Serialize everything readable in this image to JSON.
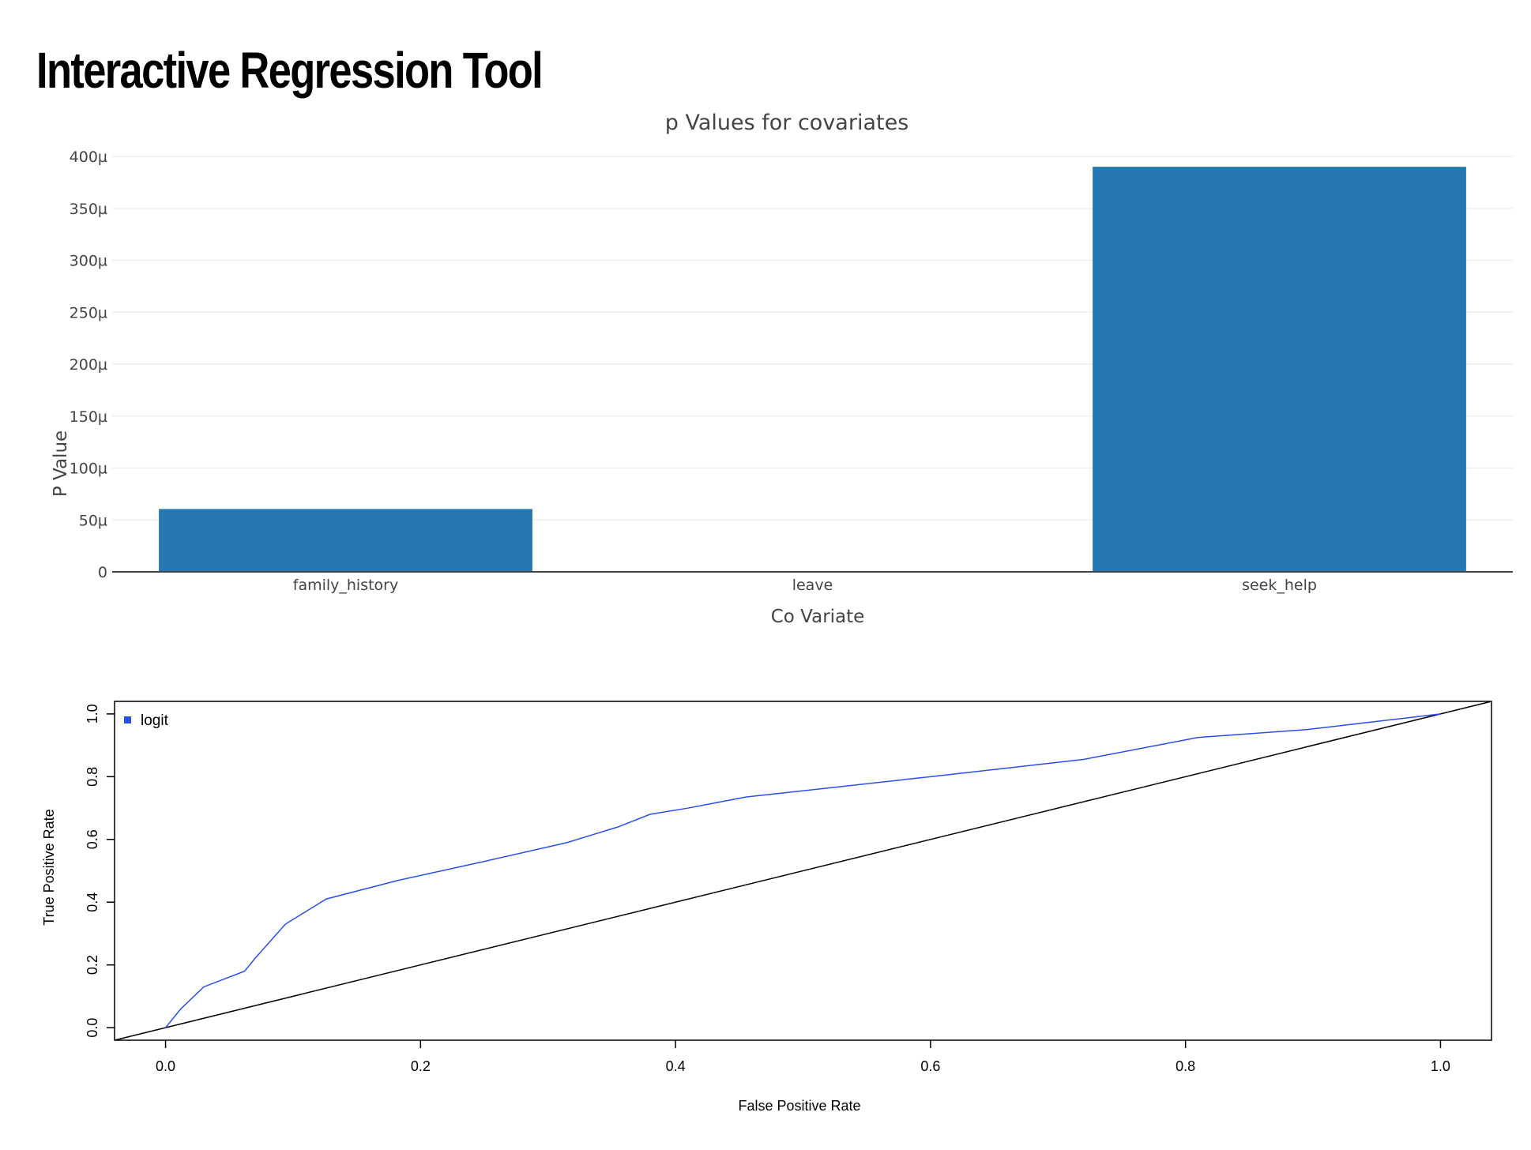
{
  "app": {
    "title": "Interactive Regression Tool"
  },
  "chart_data": [
    {
      "type": "bar",
      "title": "p Values for covariates",
      "xlabel": "Co Variate",
      "ylabel": "P Value",
      "categories": [
        "family_history",
        "leave",
        "seek_help"
      ],
      "values": [
        6.05e-05,
        1e-07,
        0.00039
      ],
      "ylim": [
        0,
        0.0004
      ],
      "yticks": [
        {
          "value": 0,
          "label": "0"
        },
        {
          "value": 5e-05,
          "label": "50µ"
        },
        {
          "value": 0.0001,
          "label": "100µ"
        },
        {
          "value": 0.00015,
          "label": "150µ"
        },
        {
          "value": 0.0002,
          "label": "200µ"
        },
        {
          "value": 0.00025,
          "label": "250µ"
        },
        {
          "value": 0.0003,
          "label": "300µ"
        },
        {
          "value": 0.00035,
          "label": "350µ"
        },
        {
          "value": 0.0004,
          "label": "400µ"
        }
      ],
      "grid": true,
      "color": "#2678b2"
    },
    {
      "type": "line",
      "xlabel": "False Positive Rate",
      "ylabel": "True Positive Rate",
      "xlim": [
        -0.04,
        1.04
      ],
      "ylim": [
        -0.04,
        1.04
      ],
      "xticks": [
        {
          "value": 0,
          "label": "0.0"
        },
        {
          "value": 0.2,
          "label": "0.2"
        },
        {
          "value": 0.4,
          "label": "0.4"
        },
        {
          "value": 0.6,
          "label": "0.6"
        },
        {
          "value": 0.8,
          "label": "0.8"
        },
        {
          "value": 1,
          "label": "1.0"
        }
      ],
      "yticks": [
        {
          "value": 0,
          "label": "0.0"
        },
        {
          "value": 0.2,
          "label": "0.2"
        },
        {
          "value": 0.4,
          "label": "0.4"
        },
        {
          "value": 0.6,
          "label": "0.6"
        },
        {
          "value": 0.8,
          "label": "0.8"
        },
        {
          "value": 1,
          "label": "1.0"
        }
      ],
      "legend": {
        "position": "top-left",
        "entries": [
          "logit"
        ]
      },
      "series": [
        {
          "name": "logit",
          "color": "#2a4ef0",
          "x": [
            0.0,
            0.012,
            0.03,
            0.062,
            0.07,
            0.094,
            0.126,
            0.183,
            0.25,
            0.315,
            0.355,
            0.38,
            0.41,
            0.455,
            0.6,
            0.72,
            0.81,
            0.895,
            1.0
          ],
          "y": [
            0.0,
            0.06,
            0.13,
            0.18,
            0.22,
            0.33,
            0.41,
            0.47,
            0.53,
            0.59,
            0.64,
            0.68,
            0.7,
            0.735,
            0.8,
            0.855,
            0.925,
            0.95,
            1.0
          ]
        }
      ],
      "reference_line": {
        "from": [
          0,
          0
        ],
        "to": [
          1,
          1
        ],
        "color": "#000000"
      }
    }
  ]
}
